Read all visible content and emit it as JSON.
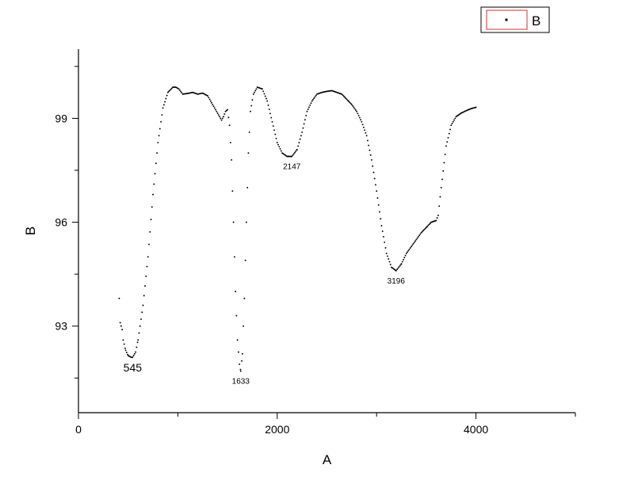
{
  "chart_data": {
    "type": "scatter",
    "xlabel": "A",
    "ylabel": "B",
    "xlim": [
      0,
      5000
    ],
    "ylim": [
      90.5,
      101.0
    ],
    "xticks": [
      0,
      2000,
      4000
    ],
    "yticks": [
      93,
      96,
      99
    ],
    "grid": false,
    "legend": {
      "placement": "top-right",
      "entries": [
        "B"
      ]
    },
    "series": [
      {
        "name": "B",
        "marker": "dot",
        "color": "#000000",
        "x": [
          410,
          420,
          430,
          440,
          450,
          475,
          500,
          530,
          545,
          575,
          600,
          650,
          700,
          750,
          800,
          850,
          900,
          950,
          980,
          1010,
          1050,
          1100,
          1150,
          1200,
          1250,
          1300,
          1350,
          1400,
          1440,
          1460,
          1480,
          1500,
          1520,
          1540,
          1560,
          1580,
          1600,
          1620,
          1633,
          1650,
          1670,
          1690,
          1710,
          1730,
          1760,
          1800,
          1850,
          1900,
          1950,
          2000,
          2050,
          2100,
          2147,
          2200,
          2250,
          2300,
          2350,
          2400,
          2450,
          2500,
          2550,
          2600,
          2650,
          2700,
          2750,
          2800,
          2850,
          2900,
          2950,
          3000,
          3050,
          3100,
          3150,
          3196,
          3250,
          3300,
          3350,
          3400,
          3450,
          3500,
          3550,
          3600,
          3620,
          3650,
          3700,
          3750,
          3800,
          3850,
          3900,
          3950,
          4000
        ],
        "y": [
          93.8,
          93.1,
          93.0,
          92.9,
          92.6,
          92.3,
          92.15,
          92.1,
          92.1,
          92.25,
          92.6,
          93.6,
          95.0,
          96.8,
          98.3,
          99.3,
          99.75,
          99.9,
          99.9,
          99.85,
          99.7,
          99.72,
          99.75,
          99.7,
          99.73,
          99.65,
          99.4,
          99.15,
          98.95,
          99.05,
          99.2,
          99.25,
          98.8,
          97.8,
          96.0,
          94.0,
          92.6,
          91.9,
          91.7,
          92.2,
          93.8,
          96.0,
          98.0,
          99.2,
          99.7,
          99.9,
          99.85,
          99.5,
          98.9,
          98.3,
          98.0,
          97.9,
          97.9,
          98.1,
          98.6,
          99.2,
          99.5,
          99.7,
          99.75,
          99.78,
          99.8,
          99.75,
          99.7,
          99.55,
          99.4,
          99.2,
          98.9,
          98.5,
          97.8,
          96.9,
          95.9,
          95.1,
          94.7,
          94.6,
          94.8,
          95.1,
          95.3,
          95.5,
          95.7,
          95.85,
          96.0,
          96.05,
          96.2,
          97.0,
          98.2,
          98.8,
          99.05,
          99.15,
          99.22,
          99.28,
          99.32
        ]
      }
    ],
    "annotations": [
      {
        "text": "545",
        "x": 545,
        "y": 92.1
      },
      {
        "text": "1633",
        "x": 1633,
        "y": 91.7
      },
      {
        "text": "2147",
        "x": 2147,
        "y": 97.9
      },
      {
        "text": "3196",
        "x": 3196,
        "y": 94.6
      }
    ]
  }
}
